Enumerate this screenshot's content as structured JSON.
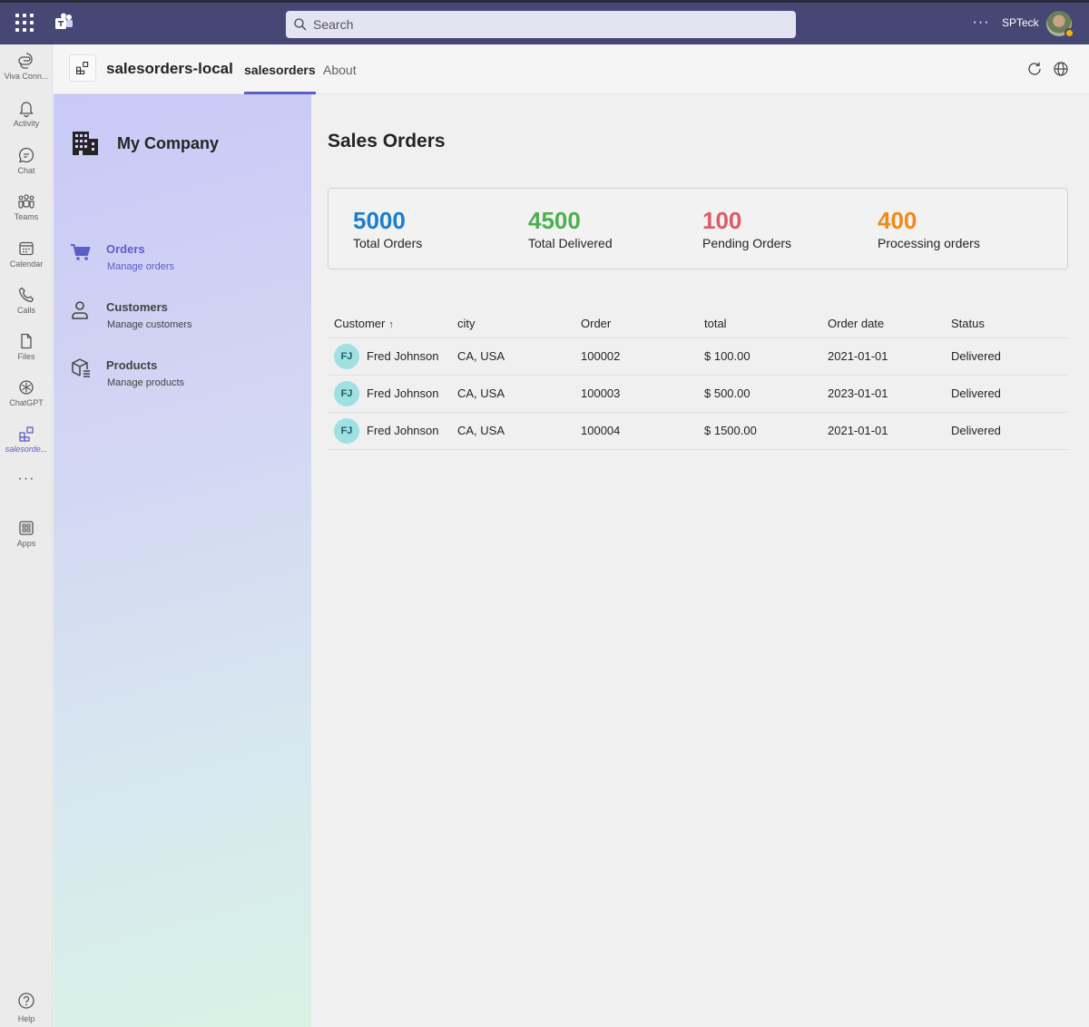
{
  "topbar": {
    "search_placeholder": "Search",
    "more_label": "···",
    "user_name": "SPTeck"
  },
  "rail": {
    "items": [
      {
        "label": "Viva Conn...",
        "icon": "viva-connections-icon"
      },
      {
        "label": "Activity",
        "icon": "bell-icon"
      },
      {
        "label": "Chat",
        "icon": "chat-icon"
      },
      {
        "label": "Teams",
        "icon": "teams-icon"
      },
      {
        "label": "Calendar",
        "icon": "calendar-icon"
      },
      {
        "label": "Calls",
        "icon": "phone-icon"
      },
      {
        "label": "Files",
        "icon": "file-icon"
      },
      {
        "label": "ChatGPT",
        "icon": "chatgpt-icon"
      },
      {
        "label": "salesorde...",
        "icon": "app-grid-icon"
      }
    ],
    "more_label": "···",
    "apps_label": "Apps",
    "help_label": "Help"
  },
  "appheader": {
    "title": "salesorders-local",
    "tabs": [
      {
        "label": "salesorders"
      },
      {
        "label": "About"
      }
    ]
  },
  "nav": {
    "company": "My Company",
    "items": [
      {
        "title": "Orders",
        "subtitle": "Manage orders"
      },
      {
        "title": "Customers",
        "subtitle": "Manage customers"
      },
      {
        "title": "Products",
        "subtitle": "Manage products"
      }
    ]
  },
  "main": {
    "title": "Sales Orders",
    "stats": [
      {
        "value": "5000",
        "label": "Total Orders",
        "color": "#1a7dd1"
      },
      {
        "value": "4500",
        "label": "Total Delivered",
        "color": "#4caf50"
      },
      {
        "value": "100",
        "label": "Pending Orders",
        "color": "#dc5b67"
      },
      {
        "value": "400",
        "label": "Processing orders",
        "color": "#f08a19"
      }
    ],
    "table": {
      "headers": [
        "Customer",
        "city",
        "Order",
        "total",
        "Order date",
        "Status"
      ],
      "sort_arrow": "↑",
      "rows": [
        {
          "initials": "FJ",
          "customer": "Fred Johnson",
          "city": "CA, USA",
          "order": "100002",
          "total": "$ 100.00",
          "date": "2021-01-01",
          "status": "Delivered"
        },
        {
          "initials": "FJ",
          "customer": "Fred Johnson",
          "city": "CA, USA",
          "order": "100003",
          "total": "$ 500.00",
          "date": "2023-01-01",
          "status": "Delivered"
        },
        {
          "initials": "FJ",
          "customer": "Fred Johnson",
          "city": "CA, USA",
          "order": "100004",
          "total": "$ 1500.00",
          "date": "2021-01-01",
          "status": "Delivered"
        }
      ]
    }
  }
}
